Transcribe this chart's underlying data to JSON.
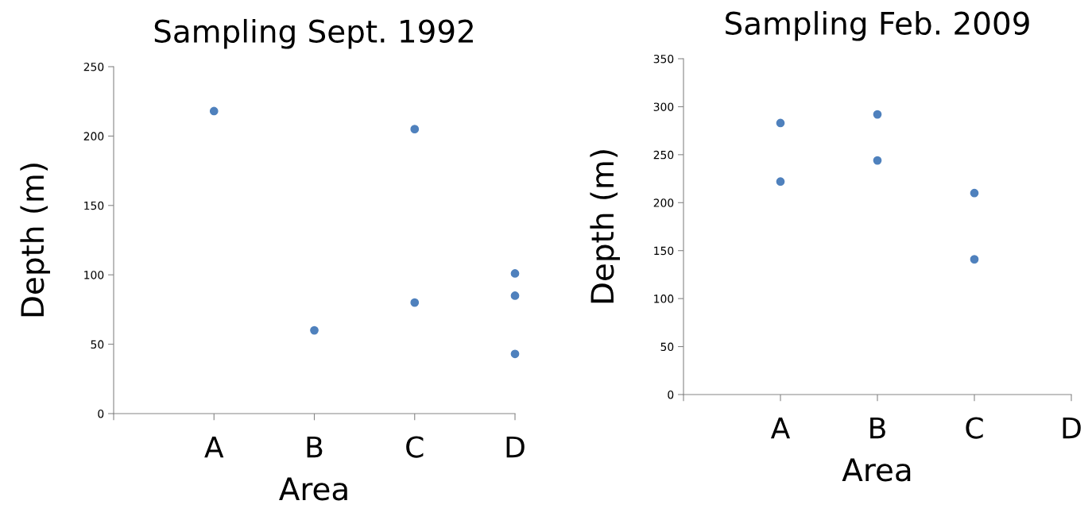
{
  "chart_data": [
    {
      "type": "scatter",
      "title": "Sampling Sept. 1992",
      "xlabel": "Area",
      "ylabel": "Depth (m)",
      "categories": [
        null,
        "A",
        "B",
        "C",
        "D"
      ],
      "marker": "circle",
      "series": [
        {
          "color": "#4f81bd",
          "values": [
            null,
            218,
            60,
            205,
            101
          ]
        },
        {
          "color": "#4f81bd",
          "values": [
            null,
            null,
            null,
            80,
            85
          ]
        },
        {
          "color": "#4f81bd",
          "values": [
            null,
            null,
            null,
            null,
            43
          ]
        }
      ],
      "ylim": [
        0,
        250
      ],
      "yticks": [
        0,
        50,
        100,
        150,
        200,
        250
      ]
    },
    {
      "type": "scatter",
      "title": "Sampling Feb. 2009",
      "xlabel": "Area",
      "ylabel": "Depth (m)",
      "categories": [
        null,
        "A",
        "B",
        "C",
        "D"
      ],
      "marker": "circle",
      "series": [
        {
          "color": "#4f81bd",
          "values": [
            null,
            283,
            292,
            210,
            null
          ]
        },
        {
          "color": "#4f81bd",
          "values": [
            null,
            222,
            244,
            141,
            null
          ]
        }
      ],
      "ylim": [
        0,
        350
      ],
      "yticks": [
        0,
        50,
        100,
        150,
        200,
        250,
        300,
        350
      ]
    }
  ]
}
